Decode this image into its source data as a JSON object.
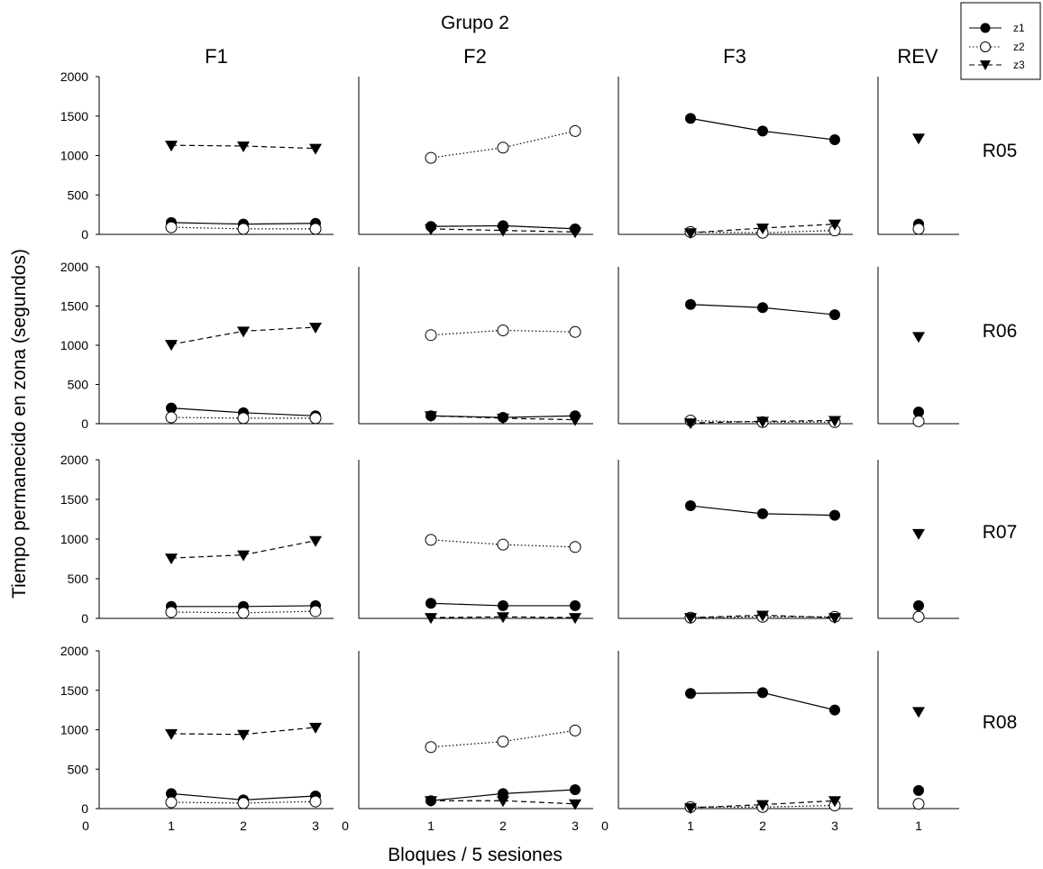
{
  "title": "Grupo 2",
  "xlabel": "Bloques / 5 sesiones",
  "ylabel": "Tiempo permanecido en zona (segundos)",
  "columns": [
    "F1",
    "F2",
    "F3",
    "REV"
  ],
  "rows": [
    "R05",
    "R06",
    "R07",
    "R08"
  ],
  "legend": [
    {
      "name": "z1",
      "marker": "filled-circle",
      "line": "solid"
    },
    {
      "name": "z2",
      "marker": "open-circle",
      "line": "dotted"
    },
    {
      "name": "z3",
      "marker": "filled-triangle-down",
      "line": "dashed"
    }
  ],
  "y_ticks": [
    "0",
    "500",
    "1000",
    "1500",
    "2000"
  ],
  "x_ticks_phase": [
    "0",
    "1",
    "2",
    "3"
  ],
  "x_ticks_rev": [
    "1"
  ],
  "chart_data": {
    "type": "line",
    "title": "Grupo 2",
    "xlabel": "Bloques / 5 sesiones",
    "ylabel": "Tiempo permanecido en zona (segundos)",
    "ylim": [
      0,
      2000
    ],
    "xlim_phases": [
      0,
      3
    ],
    "grid": false,
    "legend_position": "top-right",
    "panels": [
      {
        "row": "R05",
        "col": "F1",
        "x": [
          1,
          2,
          3
        ],
        "series": [
          {
            "name": "z1",
            "values": [
              150,
              130,
              140
            ]
          },
          {
            "name": "z2",
            "values": [
              90,
              70,
              70
            ]
          },
          {
            "name": "z3",
            "values": [
              1130,
              1120,
              1090
            ]
          }
        ]
      },
      {
        "row": "R05",
        "col": "F2",
        "x": [
          1,
          2,
          3
        ],
        "series": [
          {
            "name": "z1",
            "values": [
              100,
              110,
              70
            ]
          },
          {
            "name": "z2",
            "values": [
              970,
              1100,
              1310
            ]
          },
          {
            "name": "z3",
            "values": [
              70,
              50,
              30
            ]
          }
        ]
      },
      {
        "row": "R05",
        "col": "F3",
        "x": [
          1,
          2,
          3
        ],
        "series": [
          {
            "name": "z1",
            "values": [
              1470,
              1310,
              1200
            ]
          },
          {
            "name": "z2",
            "values": [
              30,
              20,
              50
            ]
          },
          {
            "name": "z3",
            "values": [
              20,
              80,
              130
            ]
          }
        ]
      },
      {
        "row": "R05",
        "col": "REV",
        "x": [
          1
        ],
        "series": [
          {
            "name": "z1",
            "values": [
              130
            ]
          },
          {
            "name": "z2",
            "values": [
              70
            ]
          },
          {
            "name": "z3",
            "values": [
              1220
            ]
          }
        ]
      },
      {
        "row": "R06",
        "col": "F1",
        "x": [
          1,
          2,
          3
        ],
        "series": [
          {
            "name": "z1",
            "values": [
              200,
              140,
              100
            ]
          },
          {
            "name": "z2",
            "values": [
              80,
              70,
              70
            ]
          },
          {
            "name": "z3",
            "values": [
              1010,
              1180,
              1230
            ]
          }
        ]
      },
      {
        "row": "R06",
        "col": "F2",
        "x": [
          1,
          2,
          3
        ],
        "series": [
          {
            "name": "z1",
            "values": [
              100,
              80,
              100
            ]
          },
          {
            "name": "z2",
            "values": [
              1130,
              1190,
              1170
            ]
          },
          {
            "name": "z3",
            "values": [
              100,
              70,
              50
            ]
          }
        ]
      },
      {
        "row": "R06",
        "col": "F3",
        "x": [
          1,
          2,
          3
        ],
        "series": [
          {
            "name": "z1",
            "values": [
              1520,
              1480,
              1390
            ]
          },
          {
            "name": "z2",
            "values": [
              40,
              20,
              20
            ]
          },
          {
            "name": "z3",
            "values": [
              10,
              30,
              40
            ]
          }
        ]
      },
      {
        "row": "R06",
        "col": "REV",
        "x": [
          1
        ],
        "series": [
          {
            "name": "z1",
            "values": [
              150
            ]
          },
          {
            "name": "z2",
            "values": [
              30
            ]
          },
          {
            "name": "z3",
            "values": [
              1110
            ]
          }
        ]
      },
      {
        "row": "R07",
        "col": "F1",
        "x": [
          1,
          2,
          3
        ],
        "series": [
          {
            "name": "z1",
            "values": [
              150,
              150,
              160
            ]
          },
          {
            "name": "z2",
            "values": [
              80,
              70,
              90
            ]
          },
          {
            "name": "z3",
            "values": [
              760,
              800,
              980
            ]
          }
        ]
      },
      {
        "row": "R07",
        "col": "F2",
        "x": [
          1,
          2,
          3
        ],
        "series": [
          {
            "name": "z1",
            "values": [
              190,
              160,
              160
            ]
          },
          {
            "name": "z2",
            "values": [
              990,
              930,
              900
            ]
          },
          {
            "name": "z3",
            "values": [
              10,
              20,
              10
            ]
          }
        ]
      },
      {
        "row": "R07",
        "col": "F3",
        "x": [
          1,
          2,
          3
        ],
        "series": [
          {
            "name": "z1",
            "values": [
              1420,
              1320,
              1300
            ]
          },
          {
            "name": "z2",
            "values": [
              10,
              20,
              20
            ]
          },
          {
            "name": "z3",
            "values": [
              10,
              40,
              10
            ]
          }
        ]
      },
      {
        "row": "R07",
        "col": "REV",
        "x": [
          1
        ],
        "series": [
          {
            "name": "z1",
            "values": [
              160
            ]
          },
          {
            "name": "z2",
            "values": [
              20
            ]
          },
          {
            "name": "z3",
            "values": [
              1070
            ]
          }
        ]
      },
      {
        "row": "R08",
        "col": "F1",
        "x": [
          1,
          2,
          3
        ],
        "series": [
          {
            "name": "z1",
            "values": [
              190,
              110,
              160
            ]
          },
          {
            "name": "z2",
            "values": [
              80,
              70,
              90
            ]
          },
          {
            "name": "z3",
            "values": [
              950,
              940,
              1030
            ]
          }
        ]
      },
      {
        "row": "R08",
        "col": "F2",
        "x": [
          1,
          2,
          3
        ],
        "series": [
          {
            "name": "z1",
            "values": [
              100,
              190,
              240
            ]
          },
          {
            "name": "z2",
            "values": [
              780,
              850,
              990
            ]
          },
          {
            "name": "z3",
            "values": [
              100,
              100,
              60
            ]
          }
        ]
      },
      {
        "row": "R08",
        "col": "F3",
        "x": [
          1,
          2,
          3
        ],
        "series": [
          {
            "name": "z1",
            "values": [
              1460,
              1470,
              1250
            ]
          },
          {
            "name": "z2",
            "values": [
              20,
              20,
              40
            ]
          },
          {
            "name": "z3",
            "values": [
              10,
              50,
              100
            ]
          }
        ]
      },
      {
        "row": "R08",
        "col": "REV",
        "x": [
          1
        ],
        "series": [
          {
            "name": "z1",
            "values": [
              230
            ]
          },
          {
            "name": "z2",
            "values": [
              60
            ]
          },
          {
            "name": "z3",
            "values": [
              1230
            ]
          }
        ]
      }
    ]
  }
}
